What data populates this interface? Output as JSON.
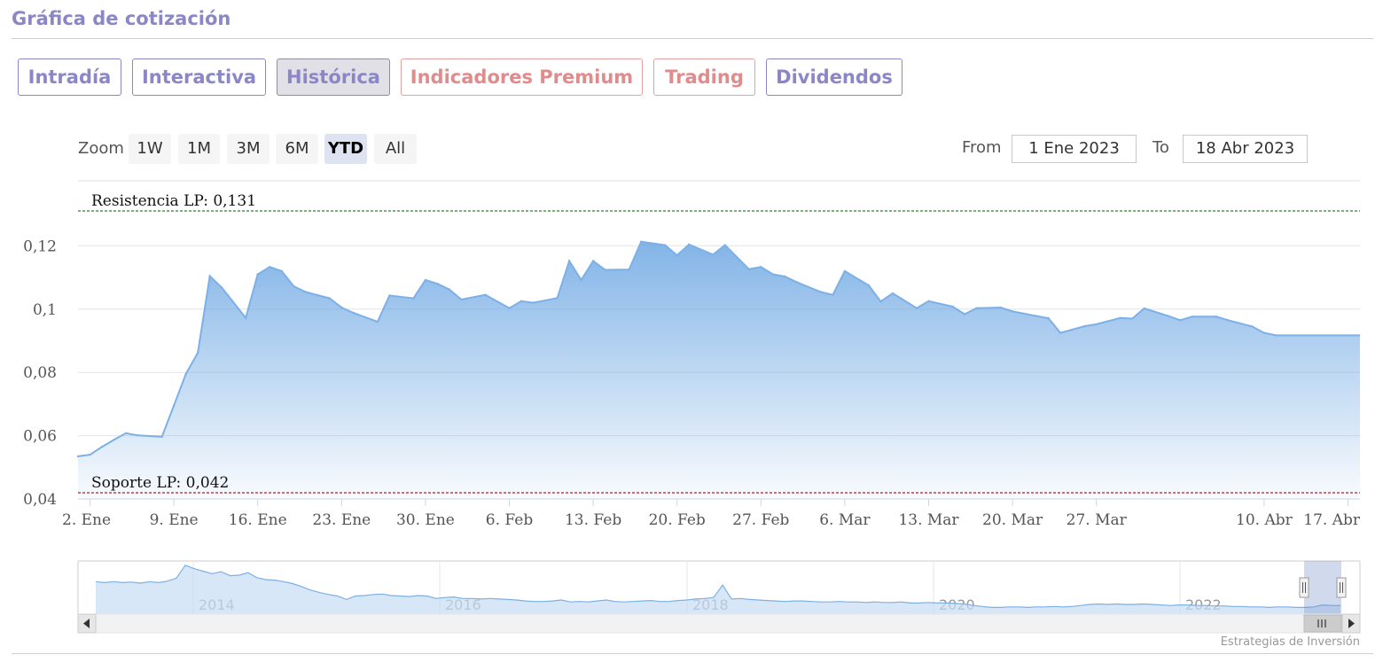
{
  "page": {
    "title": "Gráfica de cotización",
    "credit": "Estrategias de Inversión"
  },
  "tabs": [
    {
      "label": "Intradía",
      "active": false,
      "premium": false
    },
    {
      "label": "Interactiva",
      "active": false,
      "premium": false
    },
    {
      "label": "Histórica",
      "active": true,
      "premium": false
    },
    {
      "label": "Indicadores Premium",
      "active": false,
      "premium": true
    },
    {
      "label": "Trading",
      "active": false,
      "premium": true
    },
    {
      "label": "Dividendos",
      "active": false,
      "premium": false
    }
  ],
  "zoom": {
    "label": "Zoom",
    "buttons": [
      "1W",
      "1M",
      "3M",
      "6M",
      "YTD",
      "All"
    ],
    "selected": "YTD"
  },
  "range": {
    "from_label": "From",
    "from_value": "1 Ene 2023",
    "to_label": "To",
    "to_value": "18 Abr 2023"
  },
  "colors": {
    "series_line": "#7cb0e6",
    "area_top": "#7cb0e6",
    "resistance_line": "#2e7d32",
    "support_line": "#b71c1c",
    "tab_color": "#8b87c7",
    "premium_color": "#e08c8c"
  },
  "chart_data": {
    "type": "area",
    "title": "",
    "ylim": [
      0.04,
      0.135
    ],
    "yticks": [
      0.04,
      0.06,
      0.08,
      0.1,
      0.12
    ],
    "ytick_labels": [
      "0,04",
      "0,06",
      "0,08",
      "0,1",
      "0,12"
    ],
    "xlim": [
      "2023-01-01",
      "2023-04-18"
    ],
    "xticks": [
      {
        "date": "2023-01-02",
        "label": "2. Ene"
      },
      {
        "date": "2023-01-09",
        "label": "9. Ene"
      },
      {
        "date": "2023-01-16",
        "label": "16. Ene"
      },
      {
        "date": "2023-01-23",
        "label": "23. Ene"
      },
      {
        "date": "2023-01-30",
        "label": "30. Ene"
      },
      {
        "date": "2023-02-06",
        "label": "6. Feb"
      },
      {
        "date": "2023-02-13",
        "label": "13. Feb"
      },
      {
        "date": "2023-02-20",
        "label": "20. Feb"
      },
      {
        "date": "2023-02-27",
        "label": "27. Feb"
      },
      {
        "date": "2023-03-06",
        "label": "6. Mar"
      },
      {
        "date": "2023-03-13",
        "label": "13. Mar"
      },
      {
        "date": "2023-03-20",
        "label": "20. Mar"
      },
      {
        "date": "2023-03-27",
        "label": "27. Mar"
      },
      {
        "date": "2023-04-10",
        "label": "10. Abr"
      },
      {
        "date": "2023-04-17",
        "label": "17. Abr"
      }
    ],
    "grid": true,
    "series": [
      {
        "points": [
          {
            "date": "2023-01-01",
            "value": 0.0535
          },
          {
            "date": "2023-01-02",
            "value": 0.054
          },
          {
            "date": "2023-01-03",
            "value": 0.0565
          },
          {
            "date": "2023-01-04",
            "value": 0.0587
          },
          {
            "date": "2023-01-05",
            "value": 0.0608
          },
          {
            "date": "2023-01-06",
            "value": 0.0601
          },
          {
            "date": "2023-01-08",
            "value": 0.0597
          },
          {
            "date": "2023-01-09",
            "value": 0.0695
          },
          {
            "date": "2023-01-10",
            "value": 0.0795
          },
          {
            "date": "2023-01-11",
            "value": 0.0862
          },
          {
            "date": "2023-01-12",
            "value": 0.1104
          },
          {
            "date": "2023-01-13",
            "value": 0.1068
          },
          {
            "date": "2023-01-15",
            "value": 0.0972
          },
          {
            "date": "2023-01-16",
            "value": 0.111
          },
          {
            "date": "2023-01-17",
            "value": 0.1133
          },
          {
            "date": "2023-01-18",
            "value": 0.112
          },
          {
            "date": "2023-01-19",
            "value": 0.1072
          },
          {
            "date": "2023-01-20",
            "value": 0.1054
          },
          {
            "date": "2023-01-22",
            "value": 0.1034
          },
          {
            "date": "2023-01-23",
            "value": 0.1005
          },
          {
            "date": "2023-01-24",
            "value": 0.0988
          },
          {
            "date": "2023-01-26",
            "value": 0.096
          },
          {
            "date": "2023-01-27",
            "value": 0.1043
          },
          {
            "date": "2023-01-29",
            "value": 0.1034
          },
          {
            "date": "2023-01-30",
            "value": 0.1092
          },
          {
            "date": "2023-01-31",
            "value": 0.108
          },
          {
            "date": "2023-02-01",
            "value": 0.1062
          },
          {
            "date": "2023-02-02",
            "value": 0.103
          },
          {
            "date": "2023-02-04",
            "value": 0.1045
          },
          {
            "date": "2023-02-06",
            "value": 0.1003
          },
          {
            "date": "2023-02-07",
            "value": 0.1025
          },
          {
            "date": "2023-02-08",
            "value": 0.102
          },
          {
            "date": "2023-02-10",
            "value": 0.1035
          },
          {
            "date": "2023-02-11",
            "value": 0.1152
          },
          {
            "date": "2023-02-12",
            "value": 0.1092
          },
          {
            "date": "2023-02-13",
            "value": 0.1152
          },
          {
            "date": "2023-02-14",
            "value": 0.1124
          },
          {
            "date": "2023-02-16",
            "value": 0.1125
          },
          {
            "date": "2023-02-17",
            "value": 0.1213
          },
          {
            "date": "2023-02-19",
            "value": 0.1202
          },
          {
            "date": "2023-02-20",
            "value": 0.117
          },
          {
            "date": "2023-02-21",
            "value": 0.1204
          },
          {
            "date": "2023-02-23",
            "value": 0.1172
          },
          {
            "date": "2023-02-24",
            "value": 0.1202
          },
          {
            "date": "2023-02-26",
            "value": 0.1126
          },
          {
            "date": "2023-02-27",
            "value": 0.1133
          },
          {
            "date": "2023-02-28",
            "value": 0.111
          },
          {
            "date": "2023-03-01",
            "value": 0.1103
          },
          {
            "date": "2023-03-02",
            "value": 0.1085
          },
          {
            "date": "2023-03-04",
            "value": 0.1054
          },
          {
            "date": "2023-03-05",
            "value": 0.1045
          },
          {
            "date": "2023-03-06",
            "value": 0.112
          },
          {
            "date": "2023-03-08",
            "value": 0.1075
          },
          {
            "date": "2023-03-09",
            "value": 0.1024
          },
          {
            "date": "2023-03-10",
            "value": 0.105
          },
          {
            "date": "2023-03-12",
            "value": 0.1003
          },
          {
            "date": "2023-03-13",
            "value": 0.1025
          },
          {
            "date": "2023-03-15",
            "value": 0.1008
          },
          {
            "date": "2023-03-16",
            "value": 0.0984
          },
          {
            "date": "2023-03-17",
            "value": 0.1003
          },
          {
            "date": "2023-03-19",
            "value": 0.1005
          },
          {
            "date": "2023-03-20",
            "value": 0.0993
          },
          {
            "date": "2023-03-22",
            "value": 0.0978
          },
          {
            "date": "2023-03-23",
            "value": 0.0971
          },
          {
            "date": "2023-03-24",
            "value": 0.0925
          },
          {
            "date": "2023-03-26",
            "value": 0.0946
          },
          {
            "date": "2023-03-27",
            "value": 0.0952
          },
          {
            "date": "2023-03-29",
            "value": 0.0972
          },
          {
            "date": "2023-03-30",
            "value": 0.097
          },
          {
            "date": "2023-03-31",
            "value": 0.1002
          },
          {
            "date": "2023-04-02",
            "value": 0.0978
          },
          {
            "date": "2023-04-03",
            "value": 0.0965
          },
          {
            "date": "2023-04-04",
            "value": 0.0976
          },
          {
            "date": "2023-04-06",
            "value": 0.0976
          },
          {
            "date": "2023-04-07",
            "value": 0.0965
          },
          {
            "date": "2023-04-09",
            "value": 0.0945
          },
          {
            "date": "2023-04-10",
            "value": 0.0925
          },
          {
            "date": "2023-04-11",
            "value": 0.0917
          }
        ]
      }
    ],
    "plot_lines": [
      {
        "label": "Resistencia LP: 0,131",
        "value": 0.131,
        "style": "dashed",
        "color": "#2e7d32"
      },
      {
        "label": "Soporte LP: 0,042",
        "value": 0.042,
        "style": "dashed",
        "color": "#b71c1c"
      }
    ]
  },
  "navigator": {
    "year_labels": [
      "2014",
      "2016",
      "2018",
      "2020",
      "2022"
    ],
    "values": [
      0.062,
      0.06,
      0.062,
      0.06,
      0.061,
      0.059,
      0.062,
      0.06,
      0.063,
      0.069,
      0.095,
      0.088,
      0.083,
      0.078,
      0.082,
      0.074,
      0.075,
      0.08,
      0.07,
      0.066,
      0.065,
      0.062,
      0.058,
      0.052,
      0.045,
      0.04,
      0.036,
      0.033,
      0.026,
      0.033,
      0.034,
      0.036,
      0.037,
      0.034,
      0.033,
      0.032,
      0.034,
      0.033,
      0.028,
      0.03,
      0.031,
      0.028,
      0.028,
      0.027,
      0.028,
      0.027,
      0.026,
      0.025,
      0.023,
      0.022,
      0.022,
      0.023,
      0.025,
      0.021,
      0.022,
      0.021,
      0.023,
      0.025,
      0.022,
      0.021,
      0.022,
      0.023,
      0.024,
      0.022,
      0.022,
      0.024,
      0.025,
      0.027,
      0.028,
      0.03,
      0.055,
      0.027,
      0.028,
      0.026,
      0.025,
      0.024,
      0.023,
      0.022,
      0.023,
      0.023,
      0.022,
      0.021,
      0.021,
      0.022,
      0.021,
      0.021,
      0.02,
      0.021,
      0.02,
      0.02,
      0.021,
      0.019,
      0.019,
      0.02,
      0.019,
      0.019,
      0.018,
      0.017,
      0.014,
      0.012,
      0.01,
      0.01,
      0.011,
      0.011,
      0.01,
      0.011,
      0.011,
      0.012,
      0.011,
      0.012,
      0.014,
      0.016,
      0.017,
      0.016,
      0.017,
      0.016,
      0.016,
      0.017,
      0.016,
      0.015,
      0.014,
      0.015,
      0.015,
      0.014,
      0.014,
      0.013,
      0.013,
      0.012,
      0.012,
      0.011,
      0.011,
      0.01,
      0.011,
      0.011,
      0.01,
      0.01,
      0.011,
      0.015,
      0.014,
      0.014
    ],
    "scrollbar_grip": "III",
    "left_arrow": "◀",
    "right_arrow": "▶",
    "handle_glyph": "||"
  }
}
